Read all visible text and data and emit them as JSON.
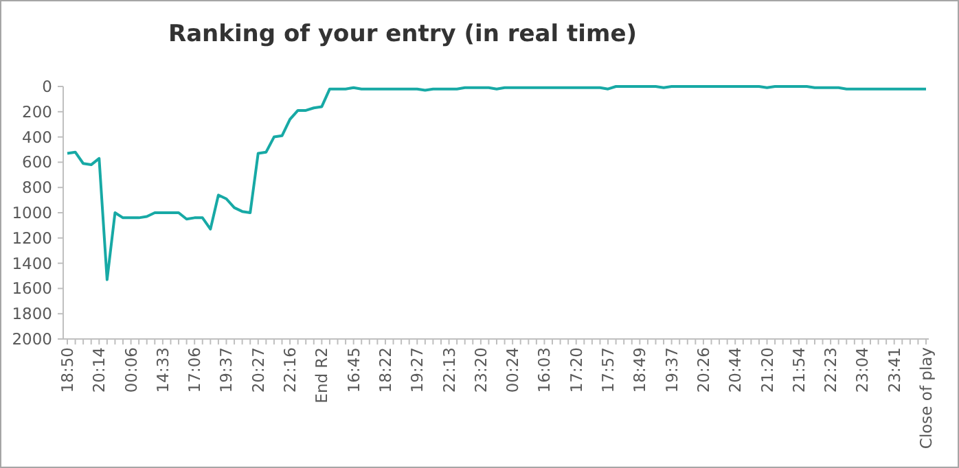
{
  "chart_data": {
    "type": "line",
    "title": "Ranking of your entry (in real time)",
    "categories": [
      "18:50",
      null,
      null,
      null,
      "20:14",
      null,
      null,
      null,
      "00:06",
      null,
      null,
      null,
      "14:33",
      null,
      null,
      null,
      "17:06",
      null,
      null,
      null,
      "19:37",
      null,
      null,
      null,
      "20:27",
      null,
      null,
      null,
      "22:16",
      null,
      null,
      null,
      "End R2",
      null,
      null,
      null,
      "16:45",
      null,
      null,
      null,
      "18:22",
      null,
      null,
      null,
      "19:27",
      null,
      null,
      null,
      "22:13",
      null,
      null,
      null,
      "23:20",
      null,
      null,
      null,
      "00:24",
      null,
      null,
      null,
      "16:03",
      null,
      null,
      null,
      "17:20",
      null,
      null,
      null,
      "17:57",
      null,
      null,
      null,
      "18:49",
      null,
      null,
      null,
      "19:37",
      null,
      null,
      null,
      "20:26",
      null,
      null,
      null,
      "20:44",
      null,
      null,
      null,
      "21:20",
      null,
      null,
      null,
      "21:54",
      null,
      null,
      null,
      "22:23",
      null,
      null,
      null,
      "23:04",
      null,
      null,
      null,
      "23:41",
      null,
      null,
      null,
      "Close of play"
    ],
    "series": [
      {
        "color": "#17a9a5",
        "values": [
          530,
          520,
          610,
          620,
          570,
          1530,
          1000,
          1040,
          1040,
          1040,
          1030,
          1000,
          1000,
          1000,
          1000,
          1050,
          1040,
          1040,
          1130,
          860,
          890,
          960,
          990,
          1000,
          530,
          520,
          400,
          390,
          260,
          190,
          190,
          170,
          160,
          20,
          20,
          20,
          10,
          20,
          20,
          20,
          20,
          20,
          20,
          20,
          20,
          30,
          20,
          20,
          20,
          20,
          10,
          10,
          10,
          10,
          20,
          10,
          10,
          10,
          10,
          10,
          10,
          10,
          10,
          10,
          10,
          10,
          10,
          10,
          20,
          0,
          0,
          0,
          0,
          0,
          0,
          10,
          0,
          0,
          0,
          0,
          0,
          0,
          0,
          0,
          0,
          0,
          0,
          0,
          10,
          0,
          0,
          0,
          0,
          0,
          10,
          10,
          10,
          10,
          20,
          20,
          20,
          20,
          20,
          20,
          20,
          20,
          20,
          20,
          20
        ]
      }
    ],
    "ylim": [
      2000,
      0
    ],
    "yticks": [
      0,
      200,
      400,
      600,
      800,
      1000,
      1200,
      1400,
      1600,
      1800,
      2000
    ],
    "grid": false,
    "marker": "none",
    "line_style": "solid"
  }
}
